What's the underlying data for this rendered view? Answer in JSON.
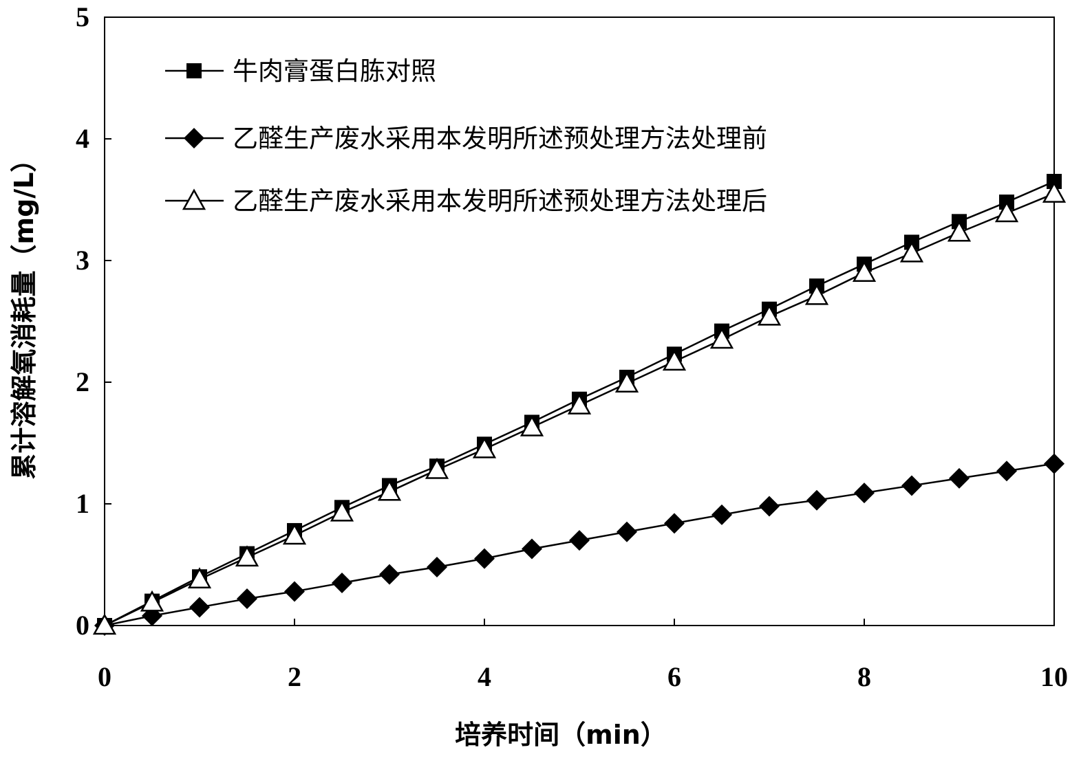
{
  "chart_data": {
    "type": "line",
    "title": "",
    "xlabel": "培养时间（min）",
    "ylabel": "累计溶解氧消耗量（mg/L）",
    "xlim": [
      0,
      10
    ],
    "ylim": [
      0,
      5
    ],
    "xticks": [
      "0",
      "2",
      "4",
      "6",
      "8",
      "10"
    ],
    "yticks": [
      "0",
      "1",
      "2",
      "3",
      "4",
      "5"
    ],
    "grid": false,
    "legend_position": "top-left",
    "x": [
      0,
      0.5,
      1,
      1.5,
      2,
      2.5,
      3,
      3.5,
      4,
      4.5,
      5,
      5.5,
      6,
      6.5,
      7,
      7.5,
      8,
      8.5,
      9,
      9.5,
      10
    ],
    "series": [
      {
        "name": "牛肉膏蛋白胨对照",
        "marker": "square",
        "values": [
          0,
          0.2,
          0.4,
          0.59,
          0.78,
          0.97,
          1.15,
          1.31,
          1.49,
          1.67,
          1.86,
          2.04,
          2.23,
          2.42,
          2.6,
          2.79,
          2.97,
          3.15,
          3.32,
          3.48,
          3.65
        ]
      },
      {
        "name": "乙醛生产废水采用本发明所述预处理方法处理前",
        "marker": "diamond",
        "values": [
          0,
          0.08,
          0.15,
          0.22,
          0.28,
          0.35,
          0.42,
          0.48,
          0.55,
          0.63,
          0.7,
          0.77,
          0.84,
          0.91,
          0.98,
          1.03,
          1.09,
          1.15,
          1.21,
          1.27,
          1.33
        ]
      },
      {
        "name": "乙醛生产废水采用本发明所述预处理方法处理后",
        "marker": "triangle",
        "values": [
          0,
          0.19,
          0.38,
          0.56,
          0.74,
          0.93,
          1.1,
          1.28,
          1.45,
          1.63,
          1.81,
          1.99,
          2.17,
          2.35,
          2.54,
          2.71,
          2.9,
          3.06,
          3.23,
          3.39,
          3.55
        ]
      }
    ]
  }
}
